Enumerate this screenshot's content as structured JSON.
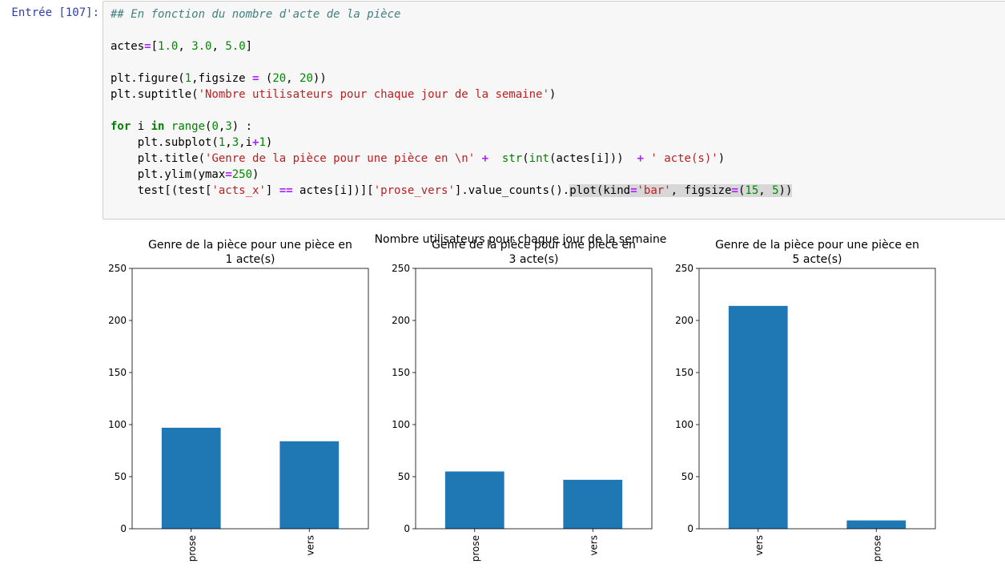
{
  "cell": {
    "prompt": "Entrée [107]:",
    "code_lines": [
      [
        {
          "t": "## En fonction du nombre d'acte de la pièce",
          "c": "tk-comment"
        }
      ],
      [],
      [
        {
          "t": "actes",
          "c": "tk-name"
        },
        {
          "t": "=",
          "c": "tk-op"
        },
        {
          "t": "[",
          "c": "tk-name"
        },
        {
          "t": "1.0",
          "c": "tk-num"
        },
        {
          "t": ", ",
          "c": "tk-name"
        },
        {
          "t": "3.0",
          "c": "tk-num"
        },
        {
          "t": ", ",
          "c": "tk-name"
        },
        {
          "t": "5.0",
          "c": "tk-num"
        },
        {
          "t": "]",
          "c": "tk-name"
        }
      ],
      [],
      [
        {
          "t": "plt.figure(",
          "c": "tk-name"
        },
        {
          "t": "1",
          "c": "tk-num"
        },
        {
          "t": ",figsize ",
          "c": "tk-name"
        },
        {
          "t": "=",
          "c": "tk-op"
        },
        {
          "t": " (",
          "c": "tk-name"
        },
        {
          "t": "20",
          "c": "tk-num"
        },
        {
          "t": ", ",
          "c": "tk-name"
        },
        {
          "t": "20",
          "c": "tk-num"
        },
        {
          "t": "))",
          "c": "tk-name"
        }
      ],
      [
        {
          "t": "plt.suptitle(",
          "c": "tk-name"
        },
        {
          "t": "'Nombre utilisateurs pour chaque jour de la semaine'",
          "c": "tk-str"
        },
        {
          "t": ")",
          "c": "tk-name"
        }
      ],
      [],
      [
        {
          "t": "for",
          "c": "tk-kw"
        },
        {
          "t": " i ",
          "c": "tk-name"
        },
        {
          "t": "in",
          "c": "tk-kw"
        },
        {
          "t": " ",
          "c": "tk-name"
        },
        {
          "t": "range",
          "c": "tk-builtin"
        },
        {
          "t": "(",
          "c": "tk-name"
        },
        {
          "t": "0",
          "c": "tk-num"
        },
        {
          "t": ",",
          "c": "tk-name"
        },
        {
          "t": "3",
          "c": "tk-num"
        },
        {
          "t": ") :",
          "c": "tk-name"
        }
      ],
      [
        {
          "t": "    plt.subplot(",
          "c": "tk-name"
        },
        {
          "t": "1",
          "c": "tk-num"
        },
        {
          "t": ",",
          "c": "tk-name"
        },
        {
          "t": "3",
          "c": "tk-num"
        },
        {
          "t": ",i",
          "c": "tk-name"
        },
        {
          "t": "+",
          "c": "tk-op"
        },
        {
          "t": "1",
          "c": "tk-num"
        },
        {
          "t": ")",
          "c": "tk-name"
        }
      ],
      [
        {
          "t": "    plt.title(",
          "c": "tk-name"
        },
        {
          "t": "'Genre de la pièce pour une pièce en \\n'",
          "c": "tk-str"
        },
        {
          "t": " ",
          "c": "tk-name"
        },
        {
          "t": "+",
          "c": "tk-op"
        },
        {
          "t": "  ",
          "c": "tk-name"
        },
        {
          "t": "str",
          "c": "tk-builtin"
        },
        {
          "t": "(",
          "c": "tk-name"
        },
        {
          "t": "int",
          "c": "tk-builtin"
        },
        {
          "t": "(actes[i]))  ",
          "c": "tk-name"
        },
        {
          "t": "+",
          "c": "tk-op"
        },
        {
          "t": " ",
          "c": "tk-name"
        },
        {
          "t": "' acte(s)'",
          "c": "tk-str"
        },
        {
          "t": ")",
          "c": "tk-name"
        }
      ],
      [
        {
          "t": "    plt.ylim(ymax",
          "c": "tk-name"
        },
        {
          "t": "=",
          "c": "tk-op"
        },
        {
          "t": "250",
          "c": "tk-num"
        },
        {
          "t": ")",
          "c": "tk-name"
        }
      ],
      [
        {
          "t": "    test[(test[",
          "c": "tk-name"
        },
        {
          "t": "'acts_x'",
          "c": "tk-str"
        },
        {
          "t": "] ",
          "c": "tk-name"
        },
        {
          "t": "==",
          "c": "tk-op"
        },
        {
          "t": " actes[i])][",
          "c": "tk-name"
        },
        {
          "t": "'prose_vers'",
          "c": "tk-str"
        },
        {
          "t": "].value_counts().",
          "c": "tk-name"
        },
        {
          "t": "plot(kind",
          "c": "tk-name tk-sel"
        },
        {
          "t": "=",
          "c": "tk-op tk-sel"
        },
        {
          "t": "'bar'",
          "c": "tk-str tk-sel"
        },
        {
          "t": ", figsize",
          "c": "tk-name tk-sel"
        },
        {
          "t": "=",
          "c": "tk-op tk-sel"
        },
        {
          "t": "(",
          "c": "tk-name tk-sel"
        },
        {
          "t": "15",
          "c": "tk-num tk-sel"
        },
        {
          "t": ", ",
          "c": "tk-name tk-sel"
        },
        {
          "t": "5",
          "c": "tk-num tk-sel"
        },
        {
          "t": "))",
          "c": "tk-name tk-sel"
        }
      ]
    ]
  },
  "colors": {
    "bar": "#1f77b4",
    "axis": "#000000",
    "prompt": "#303f9f"
  },
  "chart_data": [
    {
      "type": "bar",
      "suptitle": "Nombre utilisateurs pour chaque jour de la semaine",
      "title": [
        "Genre de la pièce pour une pièce en",
        "1 acte(s)"
      ],
      "categories": [
        "prose",
        "vers"
      ],
      "values": [
        97,
        84
      ],
      "ylim": [
        0,
        250
      ],
      "yticks": [
        0,
        50,
        100,
        150,
        200,
        250
      ],
      "xlabel": "",
      "ylabel": ""
    },
    {
      "type": "bar",
      "title": [
        "Genre de la pièce pour une pièce en",
        "3 acte(s)"
      ],
      "categories": [
        "prose",
        "vers"
      ],
      "values": [
        55,
        47
      ],
      "ylim": [
        0,
        250
      ],
      "yticks": [
        0,
        50,
        100,
        150,
        200,
        250
      ],
      "xlabel": "",
      "ylabel": ""
    },
    {
      "type": "bar",
      "title": [
        "Genre de la pièce pour une pièce en",
        "5 acte(s)"
      ],
      "categories": [
        "vers",
        "prose"
      ],
      "values": [
        214,
        8
      ],
      "ylim": [
        0,
        250
      ],
      "yticks": [
        0,
        50,
        100,
        150,
        200,
        250
      ],
      "xlabel": "",
      "ylabel": ""
    }
  ]
}
